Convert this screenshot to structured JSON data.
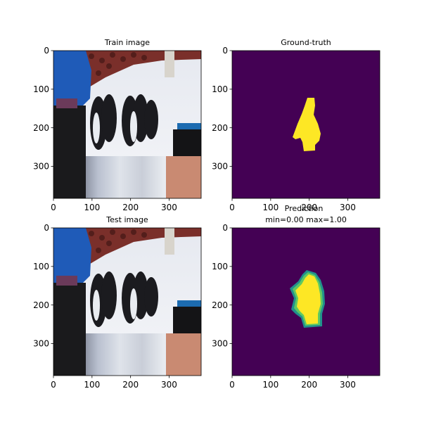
{
  "figure": {
    "background": "#ffffff"
  },
  "panels": [
    {
      "id": "train-image",
      "title_lines": [
        "Train image"
      ],
      "kind": "photo",
      "xticks": [
        "0",
        "100",
        "200",
        "300"
      ],
      "yticks": [
        "0",
        "100",
        "200",
        "300"
      ]
    },
    {
      "id": "ground-truth",
      "title_lines": [
        "Ground-truth"
      ],
      "kind": "mask-hard",
      "xticks": [
        "0",
        "100",
        "200",
        "300"
      ],
      "yticks": [
        "0",
        "100",
        "200",
        "300"
      ]
    },
    {
      "id": "test-image",
      "title_lines": [
        "Test image"
      ],
      "kind": "photo",
      "xticks": [
        "0",
        "100",
        "200",
        "300"
      ],
      "yticks": [
        "0",
        "100",
        "200",
        "300"
      ]
    },
    {
      "id": "prediction",
      "title_lines": [
        "Prediction",
        "min=0.00 max=1.00"
      ],
      "kind": "mask-soft",
      "xticks": [
        "0",
        "100",
        "200",
        "300"
      ],
      "yticks": [
        "0",
        "100",
        "200",
        "300"
      ]
    }
  ],
  "colors": {
    "mask_background": "#440154",
    "mask_foreground": "#fde725",
    "mask_mid": "#21918c",
    "mask_edge": "#5ec962",
    "snow": "#eef0f4",
    "jacket_blue": "#1f5bb8",
    "crowd": "#7a2f2a",
    "penguin": "#1b1b1f",
    "wall": "#c98a72",
    "dark_pants": "#1a1a1c",
    "blue_pole": "#1c6bb0"
  },
  "chart_data": [
    {
      "type": "heatmap",
      "title": "Train image",
      "ylim": [
        383,
        0
      ],
      "xlim": [
        0,
        383
      ]
    },
    {
      "type": "heatmap",
      "title": "Ground-truth",
      "ylim": [
        383,
        0
      ],
      "xlim": [
        0,
        383
      ],
      "value_range": [
        0,
        1
      ]
    },
    {
      "type": "heatmap",
      "title": "Test image",
      "ylim": [
        383,
        0
      ],
      "xlim": [
        0,
        383
      ]
    },
    {
      "type": "heatmap",
      "title": "Prediction",
      "subtitle": "min=0.00 max=1.00",
      "ylim": [
        383,
        0
      ],
      "xlim": [
        0,
        383
      ],
      "value_range": [
        0.0,
        1.0
      ]
    }
  ]
}
